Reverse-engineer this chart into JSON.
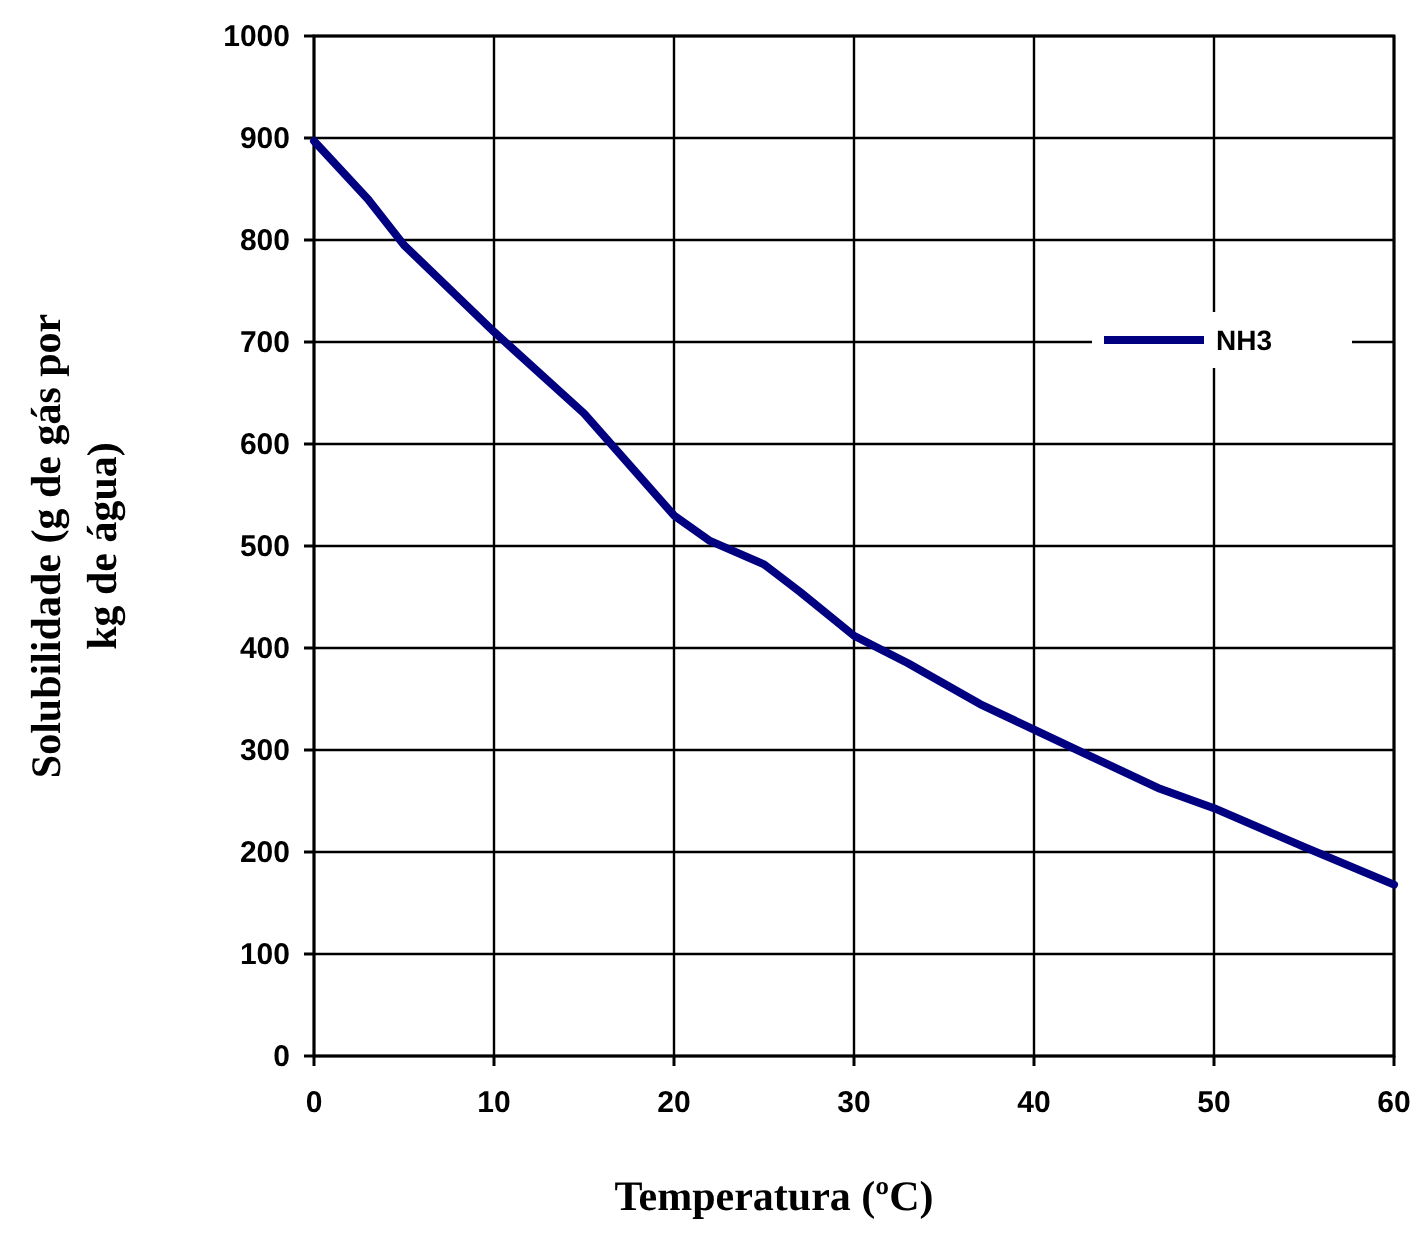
{
  "chart_data": {
    "type": "line",
    "xlabel": "Temperatura (ºC)",
    "ylabel": "Solubilidade (g de gás por kg de água)",
    "x": [
      0,
      3,
      5,
      10,
      15,
      20,
      22,
      25,
      27,
      30,
      33,
      37,
      40,
      43,
      47,
      50,
      55,
      60
    ],
    "series": [
      {
        "name": "NH3",
        "color": "#000080",
        "values": [
          897,
          840,
          795,
          710,
          630,
          530,
          505,
          482,
          455,
          412,
          385,
          345,
          320,
          295,
          262,
          243,
          205,
          168
        ]
      }
    ],
    "xlim": [
      0,
      60
    ],
    "xticks": [
      0,
      10,
      20,
      30,
      40,
      50,
      60
    ],
    "ylim": [
      0,
      1000
    ],
    "yticks": [
      0,
      100,
      200,
      300,
      400,
      500,
      600,
      700,
      800,
      900,
      1000
    ],
    "grid": true,
    "legend": "top right",
    "marker": "none",
    "line_style": "solid"
  }
}
